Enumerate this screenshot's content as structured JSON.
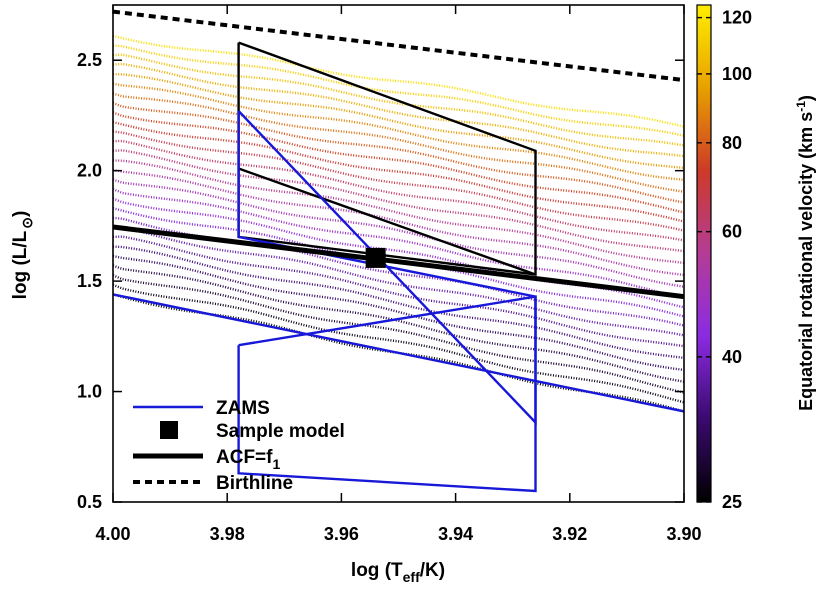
{
  "chart_data": {
    "type": "line",
    "xlabel": "log (T",
    "xlabel_sub": "eff",
    "xlabel_tail": "/K)",
    "ylabel": "log (L/L",
    "ylabel_tail": ")",
    "xlim": [
      4.0,
      3.9
    ],
    "ylim": [
      0.5,
      2.75
    ],
    "x_ticks": [
      4.0,
      3.98,
      3.96,
      3.94,
      3.92,
      3.9
    ],
    "x_tick_labels": [
      "4.00",
      "3.98",
      "3.96",
      "3.94",
      "3.92",
      "3.90"
    ],
    "y_ticks": [
      0.5,
      1.0,
      1.5,
      2.0,
      2.5
    ],
    "y_tick_labels": [
      "0.5",
      "1.0",
      "1.5",
      "2.0",
      "2.5"
    ],
    "x_reversed": true,
    "grid": false,
    "legend_position": "bottom-left",
    "colorbar": {
      "label": "Equatorial rotational velocity (km s",
      "label_sup": "-1",
      "label_tail": ")",
      "range": [
        25,
        125
      ],
      "ticks": [
        25,
        40,
        60,
        80,
        100,
        120
      ],
      "tick_labels": [
        "25",
        "40",
        "60",
        "80",
        "100",
        "120"
      ],
      "colors": [
        "#000000",
        "#3a0a6e",
        "#8a2be2",
        "#b43c96",
        "#cd3a28",
        "#e8a000",
        "#ffee00"
      ]
    },
    "series": [
      {
        "name": "ZAMS",
        "color": "#1818d8",
        "style": "solid",
        "x": [
          4.0,
          3.9
        ],
        "y": [
          1.44,
          0.91
        ]
      },
      {
        "name": "Sample model",
        "color": "#000000",
        "style": "marker-square",
        "x": [
          3.954
        ],
        "y": [
          1.605
        ]
      },
      {
        "name": "ACF=f",
        "name_sub": "1",
        "color": "#000000",
        "style": "thick-solid",
        "x": [
          4.0,
          3.9
        ],
        "y": [
          1.745,
          1.43
        ]
      },
      {
        "name": "Birthline",
        "color": "#000000",
        "style": "dashed",
        "x": [
          4.0,
          3.9
        ],
        "y": [
          2.72,
          2.41
        ]
      }
    ],
    "outline_black": {
      "x": [
        3.978,
        3.978,
        3.926,
        3.926,
        3.978
      ],
      "y": [
        2.58,
        1.7,
        1.53,
        2.09,
        2.58
      ],
      "diagonal_x": [
        3.978,
        3.926
      ],
      "diagonal_y": [
        2.01,
        1.53
      ]
    },
    "outline_blue": {
      "upper_x": [
        3.978,
        3.978,
        3.926,
        3.926,
        3.978
      ],
      "upper_y": [
        2.27,
        1.7,
        1.43,
        0.86,
        2.27
      ],
      "lower_x": [
        3.978,
        3.978,
        3.926,
        3.926,
        3.978
      ],
      "lower_y": [
        1.21,
        0.63,
        0.55,
        1.43,
        1.21
      ]
    },
    "track_band": {
      "x_start": 4.0,
      "x_end": 3.9,
      "top_left": 2.61,
      "top_right": 2.2,
      "bottom_left": 1.44,
      "bottom_right": 0.91,
      "n_tracks": 28,
      "v_min": 26,
      "v_max": 124
    }
  }
}
